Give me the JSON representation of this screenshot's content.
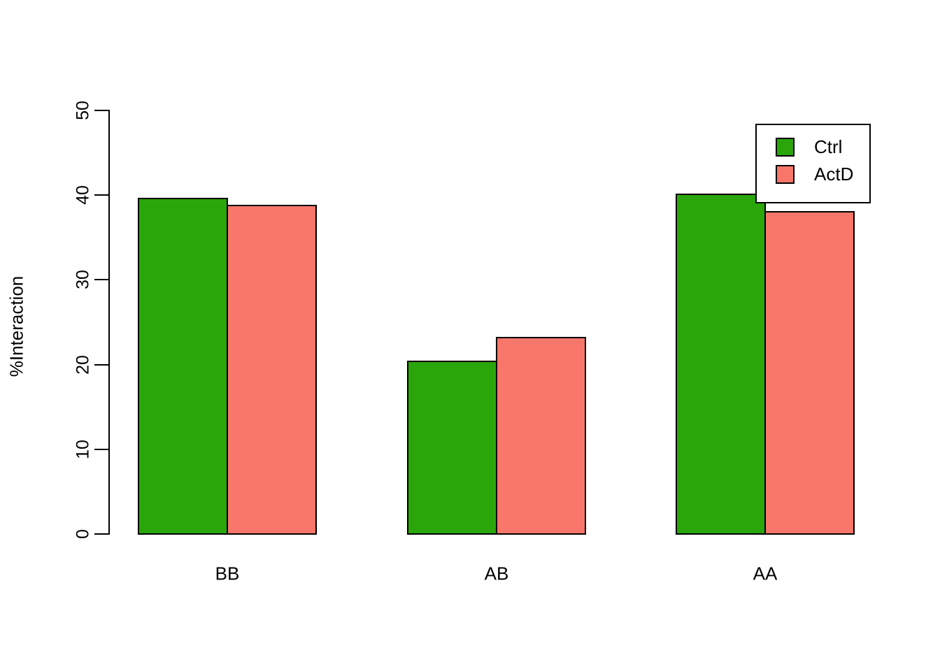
{
  "chart_data": {
    "type": "bar",
    "title": "",
    "xlabel": "",
    "ylabel": "%Interaction",
    "categories": [
      "BB",
      "AB",
      "AA"
    ],
    "series": [
      {
        "name": "Ctrl",
        "color": "#2aa60b",
        "values": [
          39.6,
          20.4,
          40.1
        ]
      },
      {
        "name": "ActD",
        "color": "#f8776a",
        "values": [
          38.8,
          23.2,
          38.0
        ]
      }
    ],
    "ylim": [
      0,
      50
    ],
    "yticks": [
      0,
      10,
      20,
      30,
      40,
      50
    ],
    "grid": false,
    "bar_edge_color": "#000000",
    "legend_position": "top-right",
    "legend_border": true
  }
}
